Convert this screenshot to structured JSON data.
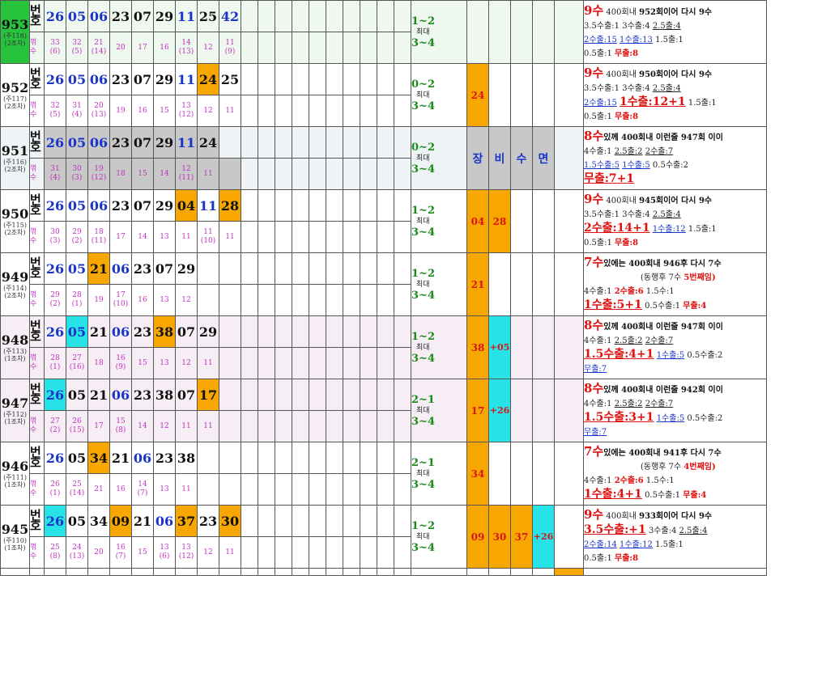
{
  "sheet": {
    "rows": [
      {
        "id": "953",
        "sub": "(주118)",
        "sub2": "(2조차)",
        "idclass": "id-green",
        "bg": "rowbg-g",
        "label1": "번",
        "label1b": "호",
        "label2": "꺾",
        "label2b": "수",
        "nums": [
          {
            "v": "26",
            "c": "blue"
          },
          {
            "v": "05",
            "c": "blue"
          },
          {
            "v": "06",
            "c": "blue"
          },
          {
            "v": "23"
          },
          {
            "v": "07"
          },
          {
            "v": "29"
          },
          {
            "v": "11",
            "c": "blue"
          },
          {
            "v": "25"
          },
          {
            "v": "42",
            "c": "blue"
          }
        ],
        "subs": [
          "33\n(6)",
          "32\n(5)",
          "21\n(14)",
          "20",
          "17",
          "16",
          "14\n(13)",
          "12",
          "11\n(9)"
        ],
        "cnt": [
          "1~2",
          "최대",
          "3~4"
        ],
        "hl": [],
        "note": [
          [
            {
              "t": "9수",
              "c": "nbig"
            },
            {
              "t": " 400회내 "
            },
            {
              "t": "952회이어 다시 9수",
              "c": "nbold"
            }
          ],
          [
            {
              "t": "3.5수출:1  3수출:4  "
            },
            {
              "t": "2.5출:4",
              "c": "nul"
            }
          ],
          [
            {
              "t": "2수출:15",
              "c": "nblue"
            },
            {
              "t": "  "
            },
            {
              "t": "1수출:13",
              "c": "nblue"
            },
            {
              "t": "  1.5출:1"
            }
          ],
          [
            {
              "t": "0.5출:1  "
            },
            {
              "t": "무출:8",
              "c": "nred"
            }
          ]
        ]
      },
      {
        "id": "952",
        "sub": "(주117)",
        "sub2": "(2조차)",
        "idclass": "",
        "bg": "",
        "label1": "번",
        "label1b": "호",
        "label2": "꺾",
        "label2b": "수",
        "nums": [
          {
            "v": "26",
            "c": "blue"
          },
          {
            "v": "05",
            "c": "blue"
          },
          {
            "v": "06",
            "c": "blue"
          },
          {
            "v": "23"
          },
          {
            "v": "07"
          },
          {
            "v": "29"
          },
          {
            "v": "11",
            "c": "blue"
          },
          {
            "v": "24",
            "bg": "orange"
          },
          {
            "v": "25"
          }
        ],
        "subs": [
          "32\n(5)",
          "31\n(4)",
          "20\n(13)",
          "19",
          "16",
          "15",
          "13\n(12)",
          "12",
          "11"
        ],
        "cnt": [
          "0~2",
          "최대",
          "3~4"
        ],
        "hl": [
          {
            "t": "24",
            "bg": "orange"
          }
        ],
        "note": [
          [
            {
              "t": "9수",
              "c": "nbig"
            },
            {
              "t": " 400회내 "
            },
            {
              "t": "950회이어 다시 9수",
              "c": "nbold"
            }
          ],
          [
            {
              "t": "3.5수출:1  3수출:4  "
            },
            {
              "t": "2.5출:4",
              "c": "nul"
            }
          ],
          [
            {
              "t": "2수출:15",
              "c": "nblue"
            },
            {
              "t": "  "
            },
            {
              "t": "1수출:12+1",
              "c": "nredbig"
            },
            {
              "t": " 1.5출:1"
            }
          ],
          [
            {
              "t": "0.5출:1  "
            },
            {
              "t": "무출:8",
              "c": "nred"
            }
          ]
        ]
      },
      {
        "id": "951",
        "sub": "(주116)",
        "sub2": "(2조차)",
        "idclass": "",
        "bg": "rowbg-b",
        "label1": "번",
        "label1b": "호",
        "label2": "꺾",
        "label2b": "수",
        "nums": [
          {
            "v": "26",
            "c": "blue",
            "bg": "gray"
          },
          {
            "v": "05",
            "c": "blue",
            "bg": "gray"
          },
          {
            "v": "06",
            "c": "blue",
            "bg": "gray"
          },
          {
            "v": "23",
            "bg": "gray"
          },
          {
            "v": "07",
            "bg": "gray"
          },
          {
            "v": "29",
            "bg": "gray"
          },
          {
            "v": "11",
            "c": "blue",
            "bg": "gray"
          },
          {
            "v": "24",
            "bg": "gray"
          },
          {
            "v": ""
          }
        ],
        "subs": [
          "31\n(4)",
          "30\n(3)",
          "19\n(12)",
          "18",
          "15",
          "14",
          "12\n(11)",
          "11",
          ""
        ],
        "subgray": true,
        "cnt": [
          "0~2",
          "최대",
          "3~4"
        ],
        "hl": [
          {
            "t": "장",
            "kw": true,
            "bg": "gray"
          },
          {
            "t": "비",
            "kw": true,
            "bg": "gray"
          },
          {
            "t": "수",
            "kw": true,
            "bg": "gray"
          },
          {
            "t": "면",
            "kw": true,
            "bg": "gray"
          }
        ],
        "note": [
          [
            {
              "t": "8수",
              "c": "nbig"
            },
            {
              "t": "있께 400회내 이런줄 947회 이이",
              "c": "nbold"
            }
          ],
          [
            {
              "t": "4수출:1  "
            },
            {
              "t": "2.5출:2",
              "c": "nul"
            },
            {
              "t": "  "
            },
            {
              "t": "2수출:7",
              "c": "nul"
            }
          ],
          [
            {
              "t": "1.5수출:5",
              "c": "nblue"
            },
            {
              "t": " "
            },
            {
              "t": "1수출:5",
              "c": "nblue"
            },
            {
              "t": "  0.5수출:2"
            }
          ],
          [
            {
              "t": "무출:7+1",
              "c": "nredbig"
            }
          ]
        ]
      },
      {
        "id": "950",
        "sub": "(주115)",
        "sub2": "(2조차)",
        "idclass": "",
        "bg": "",
        "label1": "번",
        "label1b": "호",
        "label2": "꺾",
        "label2b": "수",
        "nums": [
          {
            "v": "26",
            "c": "blue"
          },
          {
            "v": "05",
            "c": "blue"
          },
          {
            "v": "06",
            "c": "blue"
          },
          {
            "v": "23"
          },
          {
            "v": "07"
          },
          {
            "v": "29"
          },
          {
            "v": "04",
            "bg": "orange"
          },
          {
            "v": "11",
            "c": "blue"
          },
          {
            "v": "28",
            "bg": "orange"
          }
        ],
        "subs": [
          "30\n(3)",
          "29\n(2)",
          "18\n(11)",
          "17",
          "14",
          "13",
          "11",
          "11\n(10)",
          "11"
        ],
        "cnt": [
          "1~2",
          "최대",
          "3~4"
        ],
        "hl": [
          {
            "t": "04",
            "bg": "orange"
          },
          {
            "t": "28",
            "bg": "orange"
          }
        ],
        "note": [
          [
            {
              "t": "9수",
              "c": "nbig"
            },
            {
              "t": " 400회내 "
            },
            {
              "t": "945회이어 다시 9수",
              "c": "nbold"
            }
          ],
          [
            {
              "t": "3.5수출:1  3수출:4  "
            },
            {
              "t": "2.5출:4",
              "c": "nul"
            }
          ],
          [
            {
              "t": "2수출:14+1",
              "c": "nredbig"
            },
            {
              "t": "  "
            },
            {
              "t": "1수출:12",
              "c": "nblue"
            },
            {
              "t": "  1.5출:1"
            }
          ],
          [
            {
              "t": "0.5출:1  "
            },
            {
              "t": "무출:8",
              "c": "nred"
            }
          ]
        ]
      },
      {
        "id": "949",
        "sub": "(주114)",
        "sub2": "(2조차)",
        "idclass": "",
        "bg": "",
        "label1": "번",
        "label1b": "호",
        "label2": "꺾",
        "label2b": "수",
        "nums": [
          {
            "v": "26",
            "c": "blue"
          },
          {
            "v": "05",
            "c": "blue"
          },
          {
            "v": "21",
            "bg": "orange"
          },
          {
            "v": "06",
            "c": "blue"
          },
          {
            "v": "23"
          },
          {
            "v": "07"
          },
          {
            "v": "29"
          },
          {
            "v": ""
          },
          {
            "v": ""
          }
        ],
        "subs": [
          "29\n(2)",
          "28\n(1)",
          "19",
          "17\n(10)",
          "16",
          "13",
          "12",
          "",
          ""
        ],
        "cnt": [
          "1~2",
          "최대",
          "3~4"
        ],
        "hl": [
          {
            "t": "21",
            "bg": "orange"
          }
        ],
        "note": [
          [
            {
              "t": "7수",
              "c": "nbig"
            },
            {
              "t": "있에는 400회내 946후 다시 7수",
              "c": "nbold"
            }
          ],
          [
            {
              "t": "(동행후  7수 ",
              "cls": "nsub"
            },
            {
              "t": "5번째임)",
              "c": "nred"
            }
          ],
          [
            {
              "t": "4수출:1   "
            },
            {
              "t": "2수출:6",
              "c": "nred"
            },
            {
              "t": "  1.5수:1"
            }
          ],
          [
            {
              "t": "1수출:5+1",
              "c": "nredbig"
            },
            {
              "t": "   0.5수출:1  "
            },
            {
              "t": "무출:4",
              "c": "nred"
            }
          ]
        ]
      },
      {
        "id": "948",
        "sub": "(주113)",
        "sub2": "(1조차)",
        "idclass": "",
        "bg": "rowbg-p",
        "label1": "번",
        "label1b": "호",
        "label2": "꺾",
        "label2b": "수",
        "nums": [
          {
            "v": "26",
            "c": "blue"
          },
          {
            "v": "05",
            "c": "blue",
            "bg": "cyan"
          },
          {
            "v": "21"
          },
          {
            "v": "06",
            "c": "blue"
          },
          {
            "v": "23"
          },
          {
            "v": "38",
            "bg": "orange"
          },
          {
            "v": "07"
          },
          {
            "v": "29"
          },
          {
            "v": ""
          }
        ],
        "subs": [
          "28\n(1)",
          "27\n(16)",
          "18",
          "16\n(9)",
          "15",
          "13",
          "12",
          "11",
          ""
        ],
        "cnt": [
          "1~2",
          "최대",
          "3~4"
        ],
        "hl": [
          {
            "t": "38",
            "bg": "orange"
          },
          {
            "t": "+05",
            "bg": "cyan",
            "cy": true
          }
        ],
        "note": [
          [
            {
              "t": "8수",
              "c": "nbig"
            },
            {
              "t": "있께 400회내 이런줄 947회 이이",
              "c": "nbold"
            }
          ],
          [
            {
              "t": "4수출:1  "
            },
            {
              "t": "2.5출:2",
              "c": "nul"
            },
            {
              "t": "  "
            },
            {
              "t": "2수출:7",
              "c": "nul"
            }
          ],
          [
            {
              "t": "1.5수출:4+1",
              "c": "nredbig"
            },
            {
              "t": " "
            },
            {
              "t": "1수출:5",
              "c": "nblue"
            },
            {
              "t": "  0.5수출:2"
            }
          ],
          [
            {
              "t": "무출:7",
              "c": "nblue"
            }
          ]
        ]
      },
      {
        "id": "947",
        "sub": "(주112)",
        "sub2": "(1조차)",
        "idclass": "",
        "bg": "rowbg-p",
        "label1": "번",
        "label1b": "호",
        "label2": "꺾",
        "label2b": "수",
        "nums": [
          {
            "v": "26",
            "c": "blue",
            "bg": "cyan"
          },
          {
            "v": "05"
          },
          {
            "v": "21"
          },
          {
            "v": "06",
            "c": "blue"
          },
          {
            "v": "23"
          },
          {
            "v": "38"
          },
          {
            "v": "07"
          },
          {
            "v": "17",
            "bg": "orange"
          },
          {
            "v": ""
          }
        ],
        "subs": [
          "27\n(2)",
          "26\n(15)",
          "17",
          "15\n(8)",
          "14",
          "12",
          "11",
          "11",
          ""
        ],
        "cnt": [
          "2~1",
          "최대",
          "3~4"
        ],
        "hl": [
          {
            "t": "17",
            "bg": "orange"
          },
          {
            "t": "+26",
            "bg": "cyan",
            "cy": true
          }
        ],
        "note": [
          [
            {
              "t": "8수",
              "c": "nbig"
            },
            {
              "t": "있께 400회내 이런줄 942회 이이",
              "c": "nbold"
            }
          ],
          [
            {
              "t": "4수출:1  "
            },
            {
              "t": "2.5출:2",
              "c": "nul"
            },
            {
              "t": "  "
            },
            {
              "t": "2수출:7",
              "c": "nul"
            }
          ],
          [
            {
              "t": "1.5수출:3+1",
              "c": "nredbig"
            },
            {
              "t": " "
            },
            {
              "t": "1수출:5",
              "c": "nblue"
            },
            {
              "t": "  0.5수출:2"
            }
          ],
          [
            {
              "t": "무출:7",
              "c": "nblue"
            }
          ]
        ]
      },
      {
        "id": "946",
        "sub": "(주111)",
        "sub2": "(1조차)",
        "idclass": "",
        "bg": "",
        "label1": "번",
        "label1b": "호",
        "label2": "꺾",
        "label2b": "수",
        "nums": [
          {
            "v": "26",
            "c": "blue"
          },
          {
            "v": "05"
          },
          {
            "v": "34",
            "bg": "orange"
          },
          {
            "v": "21"
          },
          {
            "v": "06",
            "c": "blue"
          },
          {
            "v": "23"
          },
          {
            "v": "38"
          },
          {
            "v": ""
          },
          {
            "v": ""
          }
        ],
        "subs": [
          "26\n(1)",
          "25\n(14)",
          "21",
          "16",
          "14\n(7)",
          "13",
          "11",
          "",
          ""
        ],
        "cnt": [
          "2~1",
          "최대",
          "3~4"
        ],
        "hl": [
          {
            "t": "34",
            "bg": "orange"
          }
        ],
        "note": [
          [
            {
              "t": "7수",
              "c": "nbig"
            },
            {
              "t": "있에는 400회내 941후 다시 7수",
              "c": "nbold"
            }
          ],
          [
            {
              "t": "(동행후  7수 ",
              "cls": "nsub"
            },
            {
              "t": "4번째임)",
              "c": "nred"
            }
          ],
          [
            {
              "t": "4수출:1   "
            },
            {
              "t": "2수출:6",
              "c": "nred"
            },
            {
              "t": "  1.5수:1"
            }
          ],
          [
            {
              "t": "1수출:4+1",
              "c": "nredbig"
            },
            {
              "t": "    0.5수출:1   "
            },
            {
              "t": "무출:4",
              "c": "nred"
            }
          ]
        ]
      },
      {
        "id": "945",
        "sub": "(주110)",
        "sub2": "(1조차)",
        "idclass": "",
        "bg": "",
        "label1": "번",
        "label1b": "호",
        "label2": "꺾",
        "label2b": "수",
        "nums": [
          {
            "v": "26",
            "c": "blue",
            "bg": "cyan"
          },
          {
            "v": "05"
          },
          {
            "v": "34"
          },
          {
            "v": "09",
            "bg": "orange"
          },
          {
            "v": "21"
          },
          {
            "v": "06",
            "c": "blue"
          },
          {
            "v": "37",
            "bg": "orange"
          },
          {
            "v": "23"
          },
          {
            "v": "30",
            "bg": "orange"
          }
        ],
        "subs": [
          "25\n(8)",
          "24\n(13)",
          "20",
          "16\n(7)",
          "15",
          "13\n(6)",
          "13\n(12)",
          "12",
          "11"
        ],
        "cnt": [
          "1~2",
          "최대",
          "3~4"
        ],
        "hl": [
          {
            "t": "09",
            "bg": "orange"
          },
          {
            "t": "30",
            "bg": "orange"
          },
          {
            "t": "37",
            "bg": "orange"
          },
          {
            "t": "+26",
            "bg": "cyan",
            "cy": true
          }
        ],
        "note": [
          [
            {
              "t": "9수",
              "c": "nbig"
            },
            {
              "t": " 400회내 "
            },
            {
              "t": "933회이어 다시 9수",
              "c": "nbold"
            }
          ],
          [
            {
              "t": "3.5수출:+1",
              "c": "nredbig"
            },
            {
              "t": "  3수출:4   "
            },
            {
              "t": "2.5출:4",
              "c": "nul"
            }
          ],
          [
            {
              "t": "2수출:14",
              "c": "nblue"
            },
            {
              "t": "   "
            },
            {
              "t": "1수출:12",
              "c": "nblue"
            },
            {
              "t": "  1.5출:1"
            }
          ],
          [
            {
              "t": "0.5출:1  "
            },
            {
              "t": "무출:8",
              "c": "nred"
            }
          ]
        ]
      }
    ]
  }
}
